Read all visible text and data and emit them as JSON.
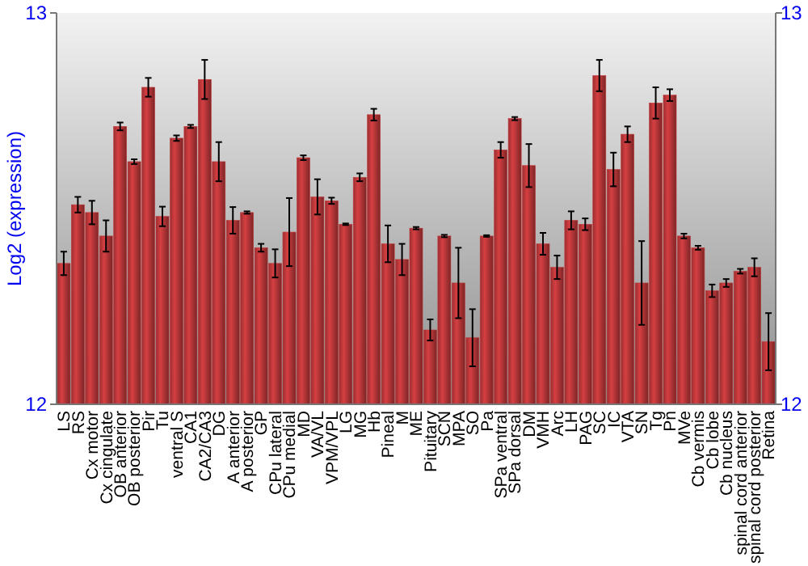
{
  "chart_data": {
    "type": "bar",
    "ylabel": "Log2 (expression)",
    "categories": [
      "LS",
      "RS",
      "Cx motor",
      "Cx cingulate",
      "OB anterior",
      "OB posterior",
      "Pir",
      "Tu",
      "ventral S",
      "CA1",
      "CA2/CA3",
      "DG",
      "A anterior",
      "A posterior",
      "GP",
      "CPu lateral",
      "CPu medial",
      "MD",
      "VA/VL",
      "VPM/VPL",
      "LG",
      "MG",
      "Hb",
      "Pineal",
      "M",
      "ME",
      "Pituitary",
      "SCN",
      "MPA",
      "SO",
      "Pa",
      "SPa ventral",
      "SPa dorsal",
      "DM",
      "VMH",
      "Arc",
      "LH",
      "PAG",
      "SC",
      "IC",
      "VTA",
      "SN",
      "Tg",
      "Pn",
      "MVe",
      "Cb vermis",
      "Cb lobe",
      "Cb nucleus",
      "spinal cord anterior",
      "spinal cord posterior",
      "Retina"
    ],
    "values": [
      12.36,
      12.51,
      12.49,
      12.43,
      12.71,
      12.62,
      12.81,
      12.48,
      12.68,
      12.71,
      12.83,
      12.62,
      12.47,
      12.49,
      12.4,
      12.36,
      12.44,
      12.63,
      12.53,
      12.52,
      12.46,
      12.58,
      12.74,
      12.41,
      12.37,
      12.45,
      12.19,
      12.43,
      12.31,
      12.17,
      12.43,
      12.65,
      12.73,
      12.61,
      12.41,
      12.35,
      12.47,
      12.46,
      12.84,
      12.6,
      12.69,
      12.31,
      12.77,
      12.79,
      12.43,
      12.4,
      12.29,
      12.31,
      12.34,
      12.35,
      12.16
    ],
    "errors": [
      0.03,
      0.02,
      0.03,
      0.04,
      0.01,
      0.006,
      0.024,
      0.025,
      0.007,
      0.004,
      0.05,
      0.05,
      0.034,
      0.003,
      0.01,
      0.036,
      0.087,
      0.006,
      0.045,
      0.008,
      0.002,
      0.01,
      0.015,
      0.047,
      0.04,
      0.003,
      0.027,
      0.003,
      0.09,
      0.073,
      0.002,
      0.02,
      0.004,
      0.055,
      0.028,
      0.03,
      0.023,
      0.015,
      0.04,
      0.043,
      0.02,
      0.107,
      0.04,
      0.015,
      0.006,
      0.005,
      0.016,
      0.01,
      0.006,
      0.023,
      0.073
    ],
    "color": "#c0393b",
    "ylim": [
      12,
      13
    ],
    "yticks": [
      12,
      13
    ],
    "y2lim": [
      12,
      13
    ],
    "y2ticks": [
      12,
      13
    ]
  }
}
